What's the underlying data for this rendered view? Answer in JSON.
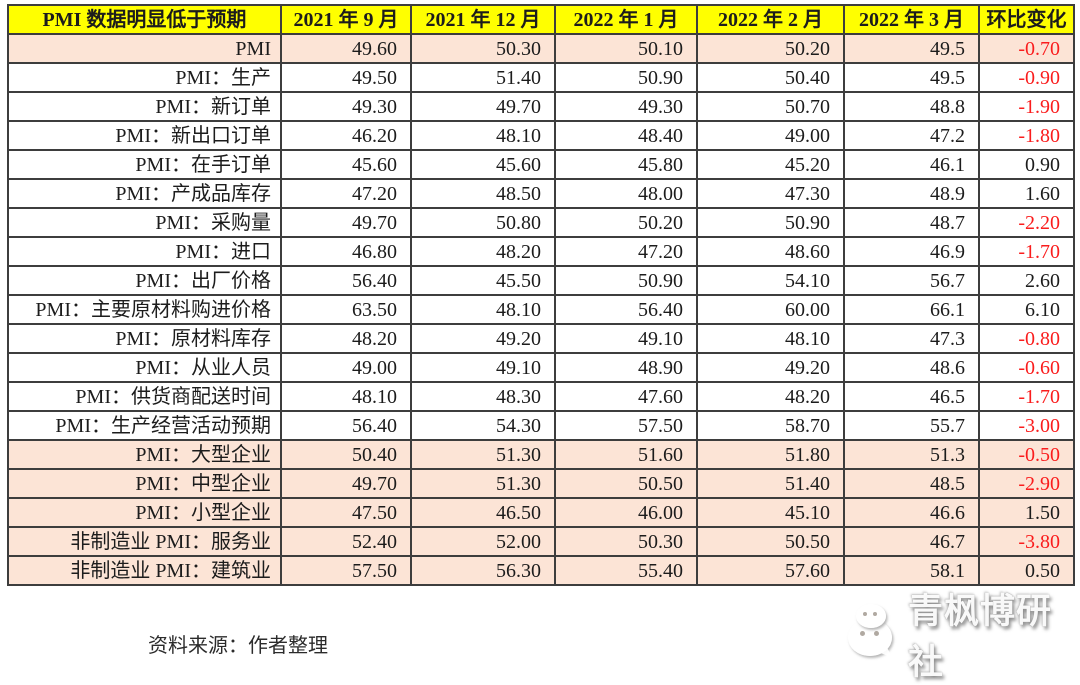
{
  "chart_data": {
    "type": "table",
    "title": "PMI 数据明显低于预期",
    "columns": [
      "2021 年 9 月",
      "2021 年 12 月",
      "2022 年 1 月",
      "2022 年 2 月",
      "2022 年 3 月",
      "环比变化"
    ],
    "rows": [
      {
        "label": "PMI",
        "values": [
          "49.60",
          "50.30",
          "50.10",
          "50.20",
          "49.5",
          "-0.70"
        ],
        "highlight": true
      },
      {
        "label": "PMI：生产",
        "values": [
          "49.50",
          "51.40",
          "50.90",
          "50.40",
          "49.5",
          "-0.90"
        ],
        "highlight": false
      },
      {
        "label": "PMI：新订单",
        "values": [
          "49.30",
          "49.70",
          "49.30",
          "50.70",
          "48.8",
          "-1.90"
        ],
        "highlight": false
      },
      {
        "label": "PMI：新出口订单",
        "values": [
          "46.20",
          "48.10",
          "48.40",
          "49.00",
          "47.2",
          "-1.80"
        ],
        "highlight": false
      },
      {
        "label": "PMI：在手订单",
        "values": [
          "45.60",
          "45.60",
          "45.80",
          "45.20",
          "46.1",
          "0.90"
        ],
        "highlight": false
      },
      {
        "label": "PMI：产成品库存",
        "values": [
          "47.20",
          "48.50",
          "48.00",
          "47.30",
          "48.9",
          "1.60"
        ],
        "highlight": false
      },
      {
        "label": "PMI：采购量",
        "values": [
          "49.70",
          "50.80",
          "50.20",
          "50.90",
          "48.7",
          "-2.20"
        ],
        "highlight": false
      },
      {
        "label": "PMI：进口",
        "values": [
          "46.80",
          "48.20",
          "47.20",
          "48.60",
          "46.9",
          "-1.70"
        ],
        "highlight": false
      },
      {
        "label": "PMI：出厂价格",
        "values": [
          "56.40",
          "45.50",
          "50.90",
          "54.10",
          "56.7",
          "2.60"
        ],
        "highlight": false
      },
      {
        "label": "PMI：主要原材料购进价格",
        "values": [
          "63.50",
          "48.10",
          "56.40",
          "60.00",
          "66.1",
          "6.10"
        ],
        "highlight": false
      },
      {
        "label": "PMI：原材料库存",
        "values": [
          "48.20",
          "49.20",
          "49.10",
          "48.10",
          "47.3",
          "-0.80"
        ],
        "highlight": false
      },
      {
        "label": "PMI：从业人员",
        "values": [
          "49.00",
          "49.10",
          "48.90",
          "49.20",
          "48.6",
          "-0.60"
        ],
        "highlight": false
      },
      {
        "label": "PMI：供货商配送时间",
        "values": [
          "48.10",
          "48.30",
          "47.60",
          "48.20",
          "46.5",
          "-1.70"
        ],
        "highlight": false
      },
      {
        "label": "PMI：生产经营活动预期",
        "values": [
          "56.40",
          "54.30",
          "57.50",
          "58.70",
          "55.7",
          "-3.00"
        ],
        "highlight": false
      },
      {
        "label": "PMI：大型企业",
        "values": [
          "50.40",
          "51.30",
          "51.60",
          "51.80",
          "51.3",
          "-0.50"
        ],
        "highlight": true
      },
      {
        "label": "PMI：中型企业",
        "values": [
          "49.70",
          "51.30",
          "50.50",
          "51.40",
          "48.5",
          "-2.90"
        ],
        "highlight": true
      },
      {
        "label": "PMI：小型企业",
        "values": [
          "47.50",
          "46.50",
          "46.00",
          "45.10",
          "46.6",
          "1.50"
        ],
        "highlight": true
      },
      {
        "label": "非制造业 PMI：服务业",
        "values": [
          "52.40",
          "52.00",
          "50.30",
          "50.50",
          "46.7",
          "-3.80"
        ],
        "highlight": true
      },
      {
        "label": "非制造业 PMI：建筑业",
        "values": [
          "57.50",
          "56.30",
          "55.40",
          "57.60",
          "58.1",
          "0.50"
        ],
        "highlight": true
      }
    ],
    "layout": {
      "grid": true,
      "header_bg": "#ffff00",
      "highlight_bg": "#fce4d6",
      "negative_color": "#fa1d1d"
    }
  },
  "source_note": "资料来源：作者整理",
  "watermark": {
    "icon": "wechat-icon",
    "text": "青枫博研社"
  }
}
